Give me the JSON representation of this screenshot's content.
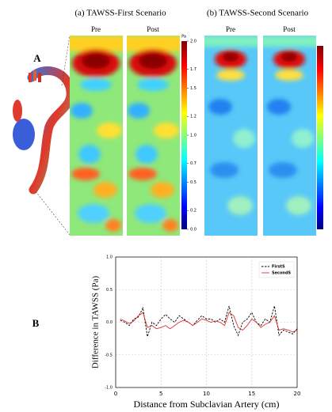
{
  "panel_labels": [
    "A",
    "B"
  ],
  "panel_a": {
    "titles": [
      "(a) TAWSS-First Scenario",
      "(b) TAWSS-Second Scenario"
    ],
    "strip_labels": [
      "Pre",
      "Post",
      "Pre",
      "Post"
    ],
    "colorbar_unit": "Pa",
    "colorbar_lim": [
      0,
      2
    ],
    "colorbar_ticks": [
      {
        "value": 2,
        "label": "2.0"
      },
      1.7,
      1.5,
      1.2,
      {
        "value": 1,
        "label": "1.0"
      },
      0.7,
      0.5,
      0.2,
      {
        "value": 0,
        "label": "0.0"
      }
    ]
  },
  "chart_data": {
    "type": "line",
    "xlabel": "Distance from Subclavian Artery (cm)",
    "ylabel": "Difference in TAWSS (Pa)",
    "x": [
      0.5,
      1,
      1.5,
      2,
      2.5,
      3,
      3.5,
      4,
      4.5,
      5,
      5.5,
      6,
      6.5,
      7,
      7.5,
      8,
      8.5,
      9,
      9.5,
      10,
      10.5,
      11,
      11.5,
      12,
      12.5,
      13,
      13.5,
      14,
      14.5,
      15,
      15.5,
      16,
      16.5,
      17,
      17.5,
      18,
      18.5,
      19,
      19.5,
      20
    ],
    "series": [
      {
        "name": "FirstS",
        "color": "#000000",
        "dash": true,
        "values": [
          0.03,
          0.0,
          -0.05,
          0.05,
          0.08,
          0.22,
          -0.22,
          0.0,
          -0.05,
          0.05,
          0.12,
          0.05,
          0.0,
          0.1,
          0.05,
          0.0,
          -0.05,
          0.03,
          0.1,
          0.05,
          0.05,
          0.0,
          0.05,
          0.0,
          0.25,
          -0.05,
          -0.2,
          0.0,
          0.05,
          0.15,
          0.0,
          -0.05,
          0.05,
          0.0,
          0.25,
          -0.2,
          -0.12,
          -0.15,
          -0.18,
          -0.1
        ]
      },
      {
        "name": "SecondS",
        "color": "#e03030",
        "dash": false,
        "values": [
          0.05,
          0.02,
          -0.02,
          0.02,
          0.1,
          0.15,
          -0.08,
          -0.05,
          -0.1,
          -0.08,
          -0.05,
          -0.1,
          -0.05,
          0.0,
          0.03,
          0.0,
          -0.05,
          0.0,
          0.05,
          0.03,
          0.0,
          0.02,
          0.0,
          -0.05,
          0.15,
          0.1,
          -0.08,
          -0.12,
          -0.05,
          0.05,
          0.0,
          -0.08,
          -0.03,
          0.0,
          0.1,
          -0.12,
          -0.1,
          -0.12,
          -0.15,
          -0.12
        ]
      }
    ],
    "xlim": [
      0,
      20
    ],
    "xticks": [
      0,
      5,
      10,
      15,
      20
    ],
    "ylim": [
      -1,
      1
    ],
    "yticks": [
      {
        "value": -1,
        "label": "-1.0"
      },
      {
        "value": -0.5,
        "label": "-0.5"
      },
      {
        "value": 0,
        "label": "0.0"
      },
      {
        "value": 0.5,
        "label": "0.5"
      },
      {
        "value": 1,
        "label": "1.0"
      }
    ],
    "grid": true,
    "legend": "upper right"
  }
}
